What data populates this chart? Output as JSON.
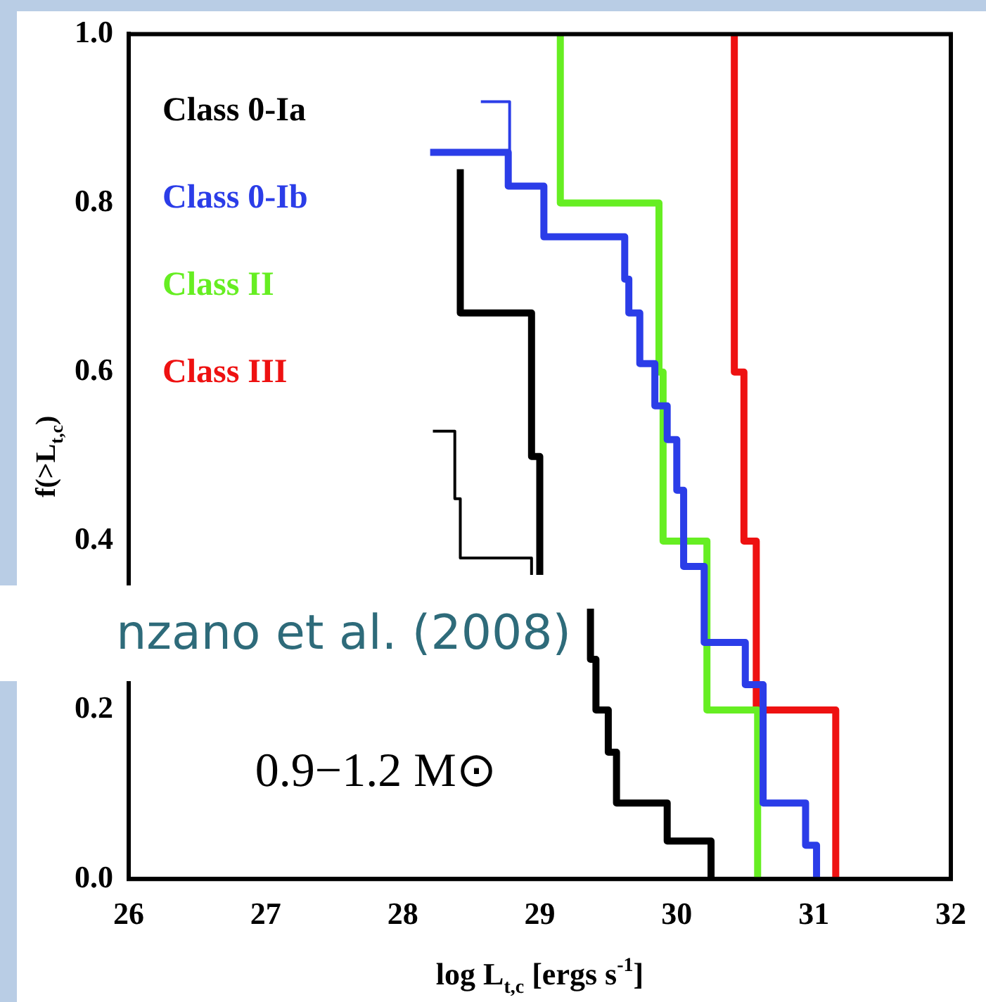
{
  "chart_data": {
    "type": "step",
    "xlabel": "log L$_{t,c}$ [ergs s$^{-1}$]",
    "ylabel": "f(>L$_{t,c}$)",
    "xlim": [
      26,
      32
    ],
    "xticks": [
      26,
      27,
      28,
      29,
      30,
      31,
      32
    ],
    "ylim": [
      0,
      1
    ],
    "yticks": [
      {
        "value": 0,
        "label": "0.0"
      },
      0.2,
      0.4,
      0.6,
      0.8,
      {
        "value": 1,
        "label": "1.0"
      }
    ],
    "grid": false,
    "legend": "top left",
    "marker": "none",
    "line_style": "solid",
    "annotations": [
      "0.9−1.2 M⊙",
      "nzano et al. (2008)"
    ],
    "series": [
      {
        "name": "Class 0-Ia",
        "color": "#000000",
        "x": [
          28.42,
          28.94,
          29.0,
          29.0,
          29.2,
          29.37,
          29.41,
          29.5,
          29.56,
          29.93,
          30.25,
          30.25
        ],
        "values": [
          0.84,
          0.67,
          0.5,
          0.36,
          null,
          0.32,
          0.26,
          0.2,
          0.15,
          0.09,
          0.045,
          0
        ]
      },
      {
        "name": "Class 0-Ib",
        "color": "#2b3de8",
        "x": [
          28.2,
          28.77,
          29.03,
          29.62,
          29.65,
          29.73,
          29.84,
          29.93,
          30.0,
          30.05,
          30.2,
          30.5,
          30.63,
          30.94,
          31.02,
          31.02
        ],
        "values": [
          0.86,
          0.86,
          0.82,
          0.76,
          0.71,
          0.67,
          0.61,
          0.56,
          0.52,
          0.46,
          0.37,
          0.28,
          0.23,
          0.09,
          0.04,
          0
        ]
      },
      {
        "name": "Class II",
        "color": "#66ee22",
        "x": [
          29.15,
          29.87,
          29.9,
          30.22,
          30.59,
          30.59
        ],
        "values": [
          1.0,
          0.8,
          0.6,
          0.4,
          0.2,
          0
        ]
      },
      {
        "name": "Class III",
        "color": "#ee1111",
        "x": [
          30.42,
          30.49,
          30.58,
          31.16,
          31.16
        ],
        "values": [
          1.0,
          0.6,
          0.4,
          0.2,
          0
        ]
      },
      {
        "color": "#000000",
        "x": [
          28.22,
          28.38,
          28.42,
          28.94,
          28.94
        ],
        "values": [
          0.53,
          0.53,
          0.45,
          0.38,
          0.36
        ]
      },
      {
        "color": "#2b3de8",
        "x": [
          28.57,
          28.78,
          28.78
        ],
        "values": [
          0.92,
          0.92,
          0.86
        ]
      }
    ]
  }
}
